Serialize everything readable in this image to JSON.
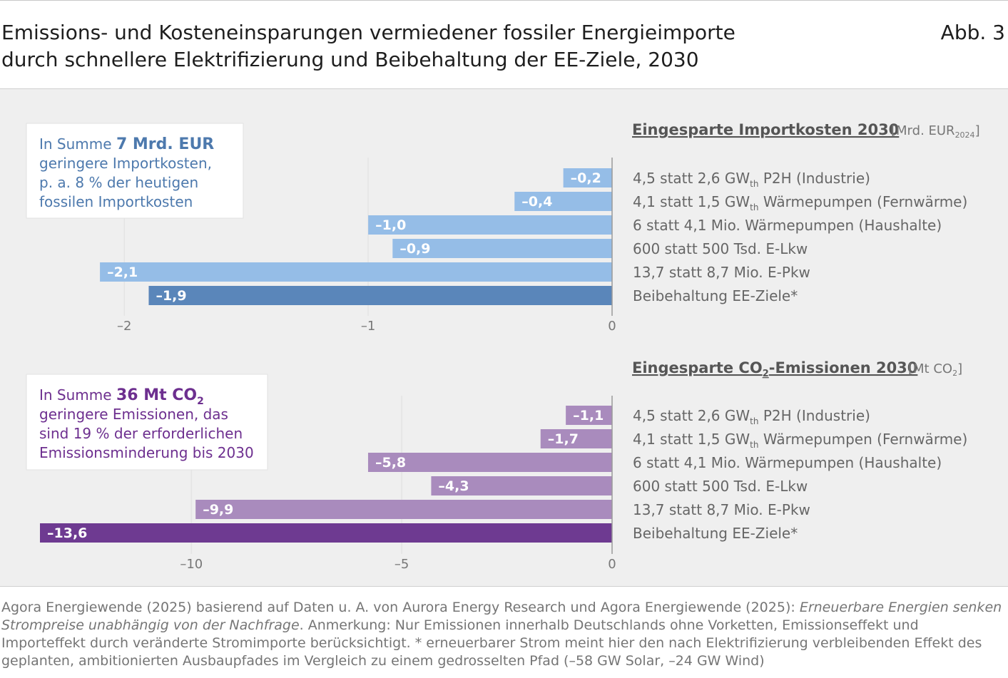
{
  "header": {
    "title_line1": "Emissions- und Kosteneinsparungen vermiedener fossiler Energieimporte",
    "title_line2": "durch schnellere Elektrifizierung und Beibehaltung der EE-Ziele, 2030",
    "figure_label": "Abb. 3"
  },
  "colors": {
    "blue_light": "#95bde7",
    "blue_dark": "#5a86ba",
    "blue_text": "#4d79ad",
    "purple_light": "#a98bbd",
    "purple_dark": "#6e3a91",
    "purple_text": "#6d2f8f",
    "panel_bg": "#efefef"
  },
  "chart_data": [
    {
      "type": "bar",
      "orientation": "horizontal",
      "title": "Eingesparte Importkosten 2030",
      "unit_prefix": "[Mrd. EUR",
      "unit_sub": "2024",
      "unit_suffix": "]",
      "categories_sub": [
        [
          "4,5 statt 2,6 GW",
          "th",
          " P2H (Industrie)"
        ],
        [
          "4,1 statt 1,5 GW",
          "th",
          " Wärmepumpen (Fernwärme)"
        ],
        [
          "6 statt 4,1 Mio. Wärmepumpen (Haushalte)",
          "",
          ""
        ],
        [
          "600 statt 500 Tsd. E-Lkw",
          "",
          ""
        ],
        [
          "13,7 statt 8,7 Mio. E-Pkw",
          "",
          ""
        ],
        [
          "Beibehaltung  EE-Ziele*",
          "",
          ""
        ]
      ],
      "values": [
        -0.2,
        -0.4,
        -1.0,
        -0.9,
        -2.1,
        -1.9
      ],
      "value_labels": [
        "–0,2",
        "–0,4",
        "–1,0",
        "–0,9",
        "–2,1",
        "–1,9"
      ],
      "highlight_index": 5,
      "xlim": [
        -2.15,
        0
      ],
      "ticks": [
        -2,
        -1,
        0
      ],
      "tick_labels": [
        "–2",
        "–1",
        "0"
      ],
      "annotation": {
        "prefix": "In Summe ",
        "bold": "7 Mrd. EUR",
        "bold_sub": "",
        "lines": [
          "geringere Importkosten,",
          "p. a. 8 % der heutigen",
          "fossilen Importkosten"
        ]
      }
    },
    {
      "type": "bar",
      "orientation": "horizontal",
      "title": "Eingesparte CO₂-Emissionen 2030",
      "unit_prefix": "[Mt CO",
      "unit_sub": "2",
      "unit_suffix": "]",
      "categories_sub": [
        [
          "4,5 statt 2,6 GW",
          "th",
          " P2H (Industrie)"
        ],
        [
          "4,1 statt 1,5 GW",
          "th",
          " Wärmepumpen (Fernwärme)"
        ],
        [
          "6 statt 4,1 Mio. Wärmepumpen (Haushalte)",
          "",
          ""
        ],
        [
          "600 statt 500 Tsd. E-Lkw",
          "",
          ""
        ],
        [
          "13,7 statt 8,7 Mio. E-Pkw",
          "",
          ""
        ],
        [
          "Beibehaltung  EE-Ziele*",
          "",
          ""
        ]
      ],
      "values": [
        -1.1,
        -1.7,
        -5.8,
        -4.3,
        -9.9,
        -13.6
      ],
      "value_labels": [
        "–1,1",
        "–1,7",
        "–5,8",
        "–4,3",
        "–9,9",
        "–13,6"
      ],
      "highlight_index": 5,
      "xlim": [
        -13.6,
        0
      ],
      "ticks": [
        -10,
        -5,
        0
      ],
      "tick_labels": [
        "–10",
        "–5",
        "0"
      ],
      "annotation": {
        "prefix": "In Summe ",
        "bold": "36 Mt CO",
        "bold_sub": "2",
        "lines": [
          "geringere Emissionen, das",
          "sind 19 % der erforderlichen",
          "Emissionsminderung bis 2030"
        ]
      }
    }
  ],
  "footer": {
    "source_start": "Agora Energiewende (2025) basierend auf Daten u. A. von Aurora Energy Research und Agora Energiewende (2025): ",
    "source_italic": "Erneuerbare Energien senken Strompreise unabhängig von der Nachfrage",
    "source_rest": ". Anmerkung: Nur Emissionen innerhalb Deutschlands ohne Vorketten, Emissionseffekt und Importeffekt durch veränderte Stromimporte berücksichtigt. * erneuerbarer Strom meint hier den nach Elektrifizierung verbleibenden Effekt des geplanten, ambitionierten Ausbaupfades im Vergleich zu einem gedrosselten Pfad (–58 GW Solar, –24 GW Wind)"
  }
}
